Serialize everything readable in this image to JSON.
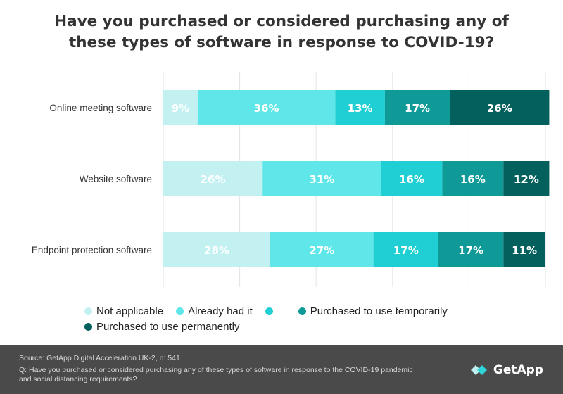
{
  "title_lines": [
    "Have you purchased or considered purchasing any of",
    "these types of software in response to COVID-19?"
  ],
  "chart_data": {
    "type": "bar",
    "orientation": "horizontal",
    "stacked": true,
    "categories": [
      "Online meeting software",
      "Website software",
      "Endpoint protection software"
    ],
    "series": [
      {
        "name": "Not applicable",
        "color": "#c3f1f2",
        "values": [
          9,
          26,
          28
        ]
      },
      {
        "name": "Already had it",
        "color": "#5fe6e8",
        "values": [
          36,
          31,
          27
        ]
      },
      {
        "name": "",
        "color": "#20cfd3",
        "values": [
          13,
          16,
          17
        ]
      },
      {
        "name": "Purchased to use temporarily",
        "color": "#0f9a98",
        "values": [
          17,
          16,
          17
        ]
      },
      {
        "name": "Purchased to use permanently",
        "color": "#03605c",
        "values": [
          26,
          12,
          11
        ]
      }
    ],
    "value_suffix": "%",
    "xlim": [
      0,
      100
    ],
    "grid": true,
    "legend_position": "bottom"
  },
  "footer": {
    "source": "Source: GetApp Digital Acceleration UK-2, n: 541",
    "question": "Q: Have you purchased or considered purchasing any of these types of software in response to the COVID-19 pandemic and social distancing requirements?",
    "logo_text": "GetApp"
  }
}
